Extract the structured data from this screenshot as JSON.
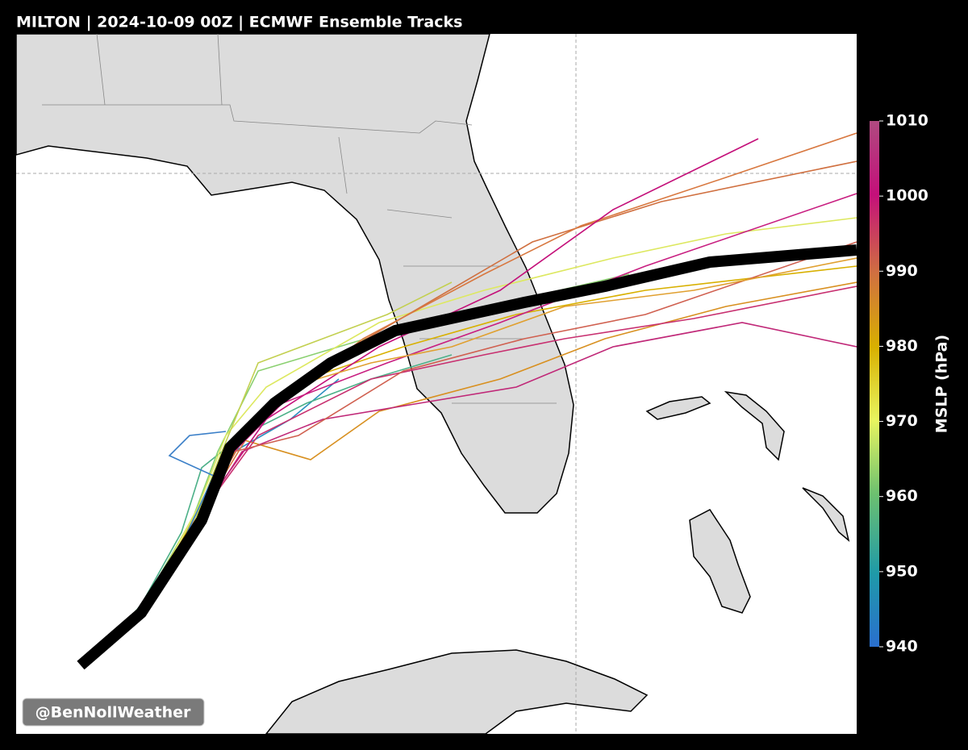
{
  "header": {
    "title": "MILTON | 2024-10-09 00Z | ECMWF Ensemble Tracks"
  },
  "colorbar": {
    "label": "MSLP (hPa)",
    "range": [
      940,
      1010
    ],
    "ticks": [
      940,
      950,
      960,
      970,
      980,
      990,
      1000,
      1010
    ]
  },
  "watermark": "@BenNollWeather"
}
